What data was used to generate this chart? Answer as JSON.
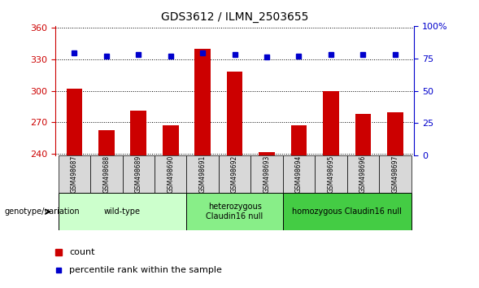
{
  "title": "GDS3612 / ILMN_2503655",
  "samples": [
    "GSM498687",
    "GSM498688",
    "GSM498689",
    "GSM498690",
    "GSM498691",
    "GSM498692",
    "GSM498693",
    "GSM498694",
    "GSM498695",
    "GSM498696",
    "GSM498697"
  ],
  "counts": [
    302,
    262,
    281,
    267,
    340,
    318,
    241,
    267,
    300,
    278,
    279
  ],
  "percentile_ranks": [
    336,
    333,
    335,
    333,
    336,
    335,
    332,
    333,
    335,
    335,
    335
  ],
  "ylim_left": [
    238,
    362
  ],
  "yticks_left": [
    240,
    270,
    300,
    330,
    360
  ],
  "yticks_right": [
    0,
    25,
    50,
    75,
    100
  ],
  "groups": [
    {
      "label": "wild-type",
      "indices": [
        0,
        1,
        2,
        3
      ],
      "color": "#ccffcc"
    },
    {
      "label": "heterozygous\nClaudin16 null",
      "indices": [
        4,
        5,
        6
      ],
      "color": "#88ee88"
    },
    {
      "label": "homozygous Claudin16 null",
      "indices": [
        7,
        8,
        9,
        10
      ],
      "color": "#44cc44"
    }
  ],
  "bar_color": "#cc0000",
  "dot_color": "#0000cc",
  "grid_color": "#000000",
  "left_axis_color": "#cc0000",
  "right_axis_color": "#0000cc",
  "legend_count_color": "#cc0000",
  "legend_dot_color": "#0000cc",
  "xlabel_left": "genotype/variation",
  "plot_bg": "#ffffff"
}
